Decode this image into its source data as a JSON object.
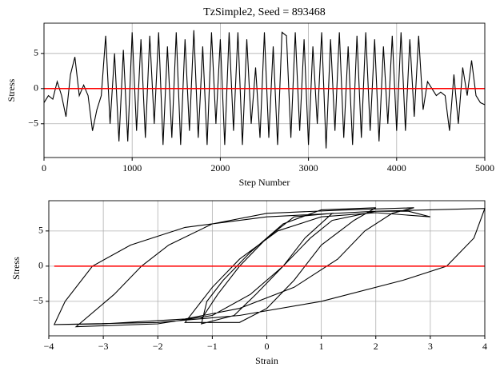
{
  "chart_data": [
    {
      "type": "line",
      "title": "TzSimple2, Seed = 893468",
      "xlabel": "Step Number",
      "ylabel": "Stress",
      "xlim": [
        0,
        5000
      ],
      "ylim": [
        -9.8,
        9.3
      ],
      "xticks": [
        0,
        1000,
        2000,
        3000,
        4000,
        5000
      ],
      "yticks": [
        {
          "value": -5,
          "label": "−5"
        },
        0,
        5
      ],
      "grid": true,
      "series": [
        {
          "color": "#000000",
          "x": [
            0,
            50,
            100,
            150,
            200,
            250,
            300,
            350,
            400,
            450,
            500,
            550,
            600,
            650,
            700,
            750,
            800,
            850,
            900,
            950,
            1000,
            1050,
            1100,
            1150,
            1200,
            1250,
            1300,
            1350,
            1400,
            1450,
            1500,
            1550,
            1600,
            1650,
            1700,
            1750,
            1800,
            1850,
            1900,
            1950,
            2000,
            2050,
            2100,
            2150,
            2200,
            2250,
            2300,
            2350,
            2400,
            2450,
            2500,
            2550,
            2600,
            2650,
            2700,
            2750,
            2800,
            2850,
            2900,
            2950,
            3000,
            3050,
            3100,
            3150,
            3200,
            3250,
            3300,
            3350,
            3400,
            3450,
            3500,
            3550,
            3600,
            3650,
            3700,
            3750,
            3800,
            3850,
            3900,
            3950,
            4000,
            4050,
            4100,
            4150,
            4200,
            4250,
            4300,
            4350,
            4400,
            4450,
            4500,
            4550,
            4600,
            4650,
            4700,
            4750,
            4800,
            4850,
            4900,
            4950,
            5000
          ],
          "values": [
            -2,
            -1,
            -1.5,
            1,
            -1,
            -4,
            2,
            4.5,
            -1,
            0.5,
            -1,
            -6,
            -3,
            -1,
            7.5,
            -5,
            5,
            -7.5,
            5.5,
            -7.5,
            8,
            -6,
            7,
            -7,
            7.5,
            -5,
            8,
            -8,
            6,
            -7,
            8,
            -8,
            7,
            -6,
            8.3,
            -7,
            6,
            -8,
            8,
            -5,
            7,
            -8,
            8,
            -6,
            8,
            -8,
            7,
            -5,
            3,
            -7,
            8,
            -7,
            6,
            -8,
            8,
            7.5,
            -7,
            8,
            -6,
            7,
            -8,
            6,
            -5,
            8,
            -8.5,
            7,
            -6,
            8,
            -7,
            6,
            -8,
            7.5,
            -7,
            8,
            -6,
            7,
            -7.5,
            6,
            -5,
            7.5,
            -6,
            8,
            -6,
            7,
            -4,
            7.5,
            -3,
            1,
            0,
            -1,
            -0.5,
            -1,
            -6,
            2,
            -5,
            3,
            -1,
            4,
            -1,
            -2,
            -2.3
          ]
        },
        {
          "color": "#ff0000",
          "x": [
            0,
            5000
          ],
          "values": [
            0,
            0
          ]
        }
      ]
    },
    {
      "type": "line",
      "xlabel": "Strain",
      "ylabel": "Stress",
      "xlim": [
        -4,
        4
      ],
      "ylim": [
        -9.9,
        9.3
      ],
      "xticks": [
        {
          "value": -4,
          "label": "−4"
        },
        {
          "value": -3,
          "label": "−3"
        },
        {
          "value": -2,
          "label": "−2"
        },
        {
          "value": -1,
          "label": "−1"
        },
        0,
        1,
        2,
        3,
        4
      ],
      "yticks": [
        {
          "value": -5,
          "label": "−5"
        },
        0,
        5
      ],
      "grid": true,
      "series": [
        {
          "color": "#000000",
          "x": [
            -3.9,
            -2,
            -0.5,
            1,
            2.5,
            3.3,
            3.8,
            4,
            2,
            0,
            -1.5,
            -2.5,
            -3.2,
            -3.7,
            -3.9,
            -3,
            -1.5,
            -0.5,
            0.5,
            1.3,
            1.8,
            2.3,
            2.7,
            1.5,
            0,
            -1,
            -1.8,
            -2.3,
            -2.8,
            -3.5,
            -2,
            -1,
            -0.3,
            0.3,
            0.8,
            1.2,
            2,
            2.6,
            3,
            2,
            1,
            0.2,
            -0.5,
            -1,
            -1.3,
            -1.5,
            -0.5,
            0,
            0.5,
            1,
            1.6,
            2,
            1,
            0.3,
            -0.3,
            -0.8,
            -1.1,
            -1.2,
            -0.6,
            -0.2,
            0.3,
            0.7,
            1.2,
            0.5,
            0,
            -0.5,
            -0.9,
            -1.2
          ],
          "values": [
            -8.3,
            -8,
            -7,
            -5,
            -2,
            0,
            4,
            8.2,
            7.8,
            7,
            5.5,
            3,
            0,
            -5,
            -8.3,
            -8.2,
            -7.5,
            -6,
            -3,
            1,
            5,
            7.5,
            8.3,
            8,
            7.5,
            6,
            3,
            0,
            -4,
            -8.6,
            -8.2,
            -7,
            -4,
            0,
            4,
            6.5,
            7.8,
            7.8,
            7,
            7.6,
            7,
            5,
            1,
            -3,
            -6,
            -8,
            -8,
            -6,
            -2,
            3,
            6.5,
            8.3,
            8,
            6,
            2,
            -2,
            -5,
            -8.2,
            -7,
            -4,
            0,
            4,
            7.5,
            7,
            4,
            0,
            -4,
            -7.5
          ]
        },
        {
          "color": "#ff0000",
          "x": [
            -3.9,
            4
          ],
          "values": [
            0,
            0
          ]
        }
      ]
    }
  ]
}
